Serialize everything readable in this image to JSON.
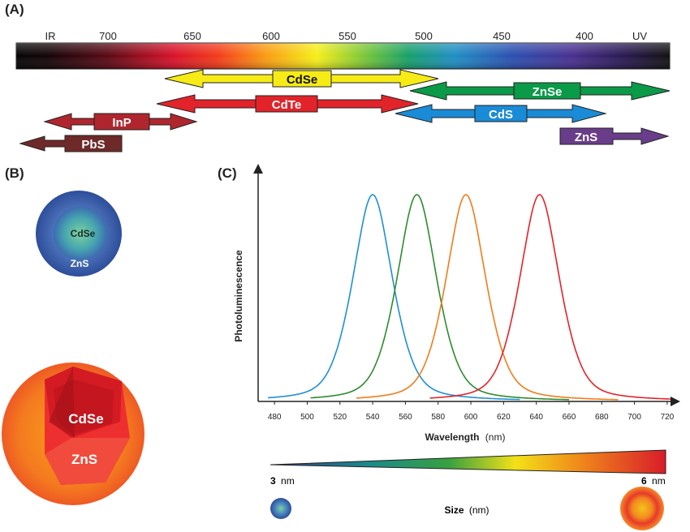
{
  "panels": {
    "a": "(A)",
    "b": "(B)",
    "c": "(C)"
  },
  "spectrum": {
    "labels": [
      "IR",
      "700",
      "650",
      "600",
      "550",
      "500",
      "450",
      "400",
      "UV"
    ]
  },
  "bands": [
    {
      "name": "CdSe",
      "fill": "#f6eb14",
      "text": "#111111"
    },
    {
      "name": "CdTe",
      "fill": "#e2232a",
      "text": "#ffffff"
    },
    {
      "name": "InP",
      "fill": "#b0262e",
      "text": "#ffffff"
    },
    {
      "name": "PbS",
      "fill": "#6e2a28",
      "text": "#ffffff"
    },
    {
      "name": "ZnSe",
      "fill": "#0a9a48",
      "text": "#ffffff"
    },
    {
      "name": "CdS",
      "fill": "#1a8bd6",
      "text": "#ffffff"
    },
    {
      "name": "ZnS",
      "fill": "#6a3d8a",
      "text": "#ffffff"
    }
  ],
  "structures": {
    "small": {
      "core": "CdSe",
      "shell": "ZnS"
    },
    "large": {
      "core": "CdSe",
      "shell": "ZnS"
    }
  },
  "chart_data": {
    "type": "line",
    "xlabel": "Wavelength",
    "xunit": "(nm)",
    "ylabel": "Photoluminescence",
    "xlim": [
      470,
      725
    ],
    "xticks": [
      480,
      500,
      520,
      540,
      560,
      580,
      600,
      620,
      640,
      660,
      680,
      700,
      720
    ],
    "series": [
      {
        "color": "#1f8fd6",
        "peak": 540,
        "start": 476,
        "end": 630
      },
      {
        "color": "#2e8b2e",
        "peak": 567,
        "start": 502,
        "end": 660
      },
      {
        "color": "#f07c1a",
        "peak": 597,
        "start": 530,
        "end": 690
      },
      {
        "color": "#e2232a",
        "peak": 642,
        "start": 575,
        "end": 722
      }
    ]
  },
  "size_scale": {
    "min_value": "3",
    "max_value": "6",
    "unit": "nm",
    "label": "Size",
    "label_unit": "(nm)"
  }
}
